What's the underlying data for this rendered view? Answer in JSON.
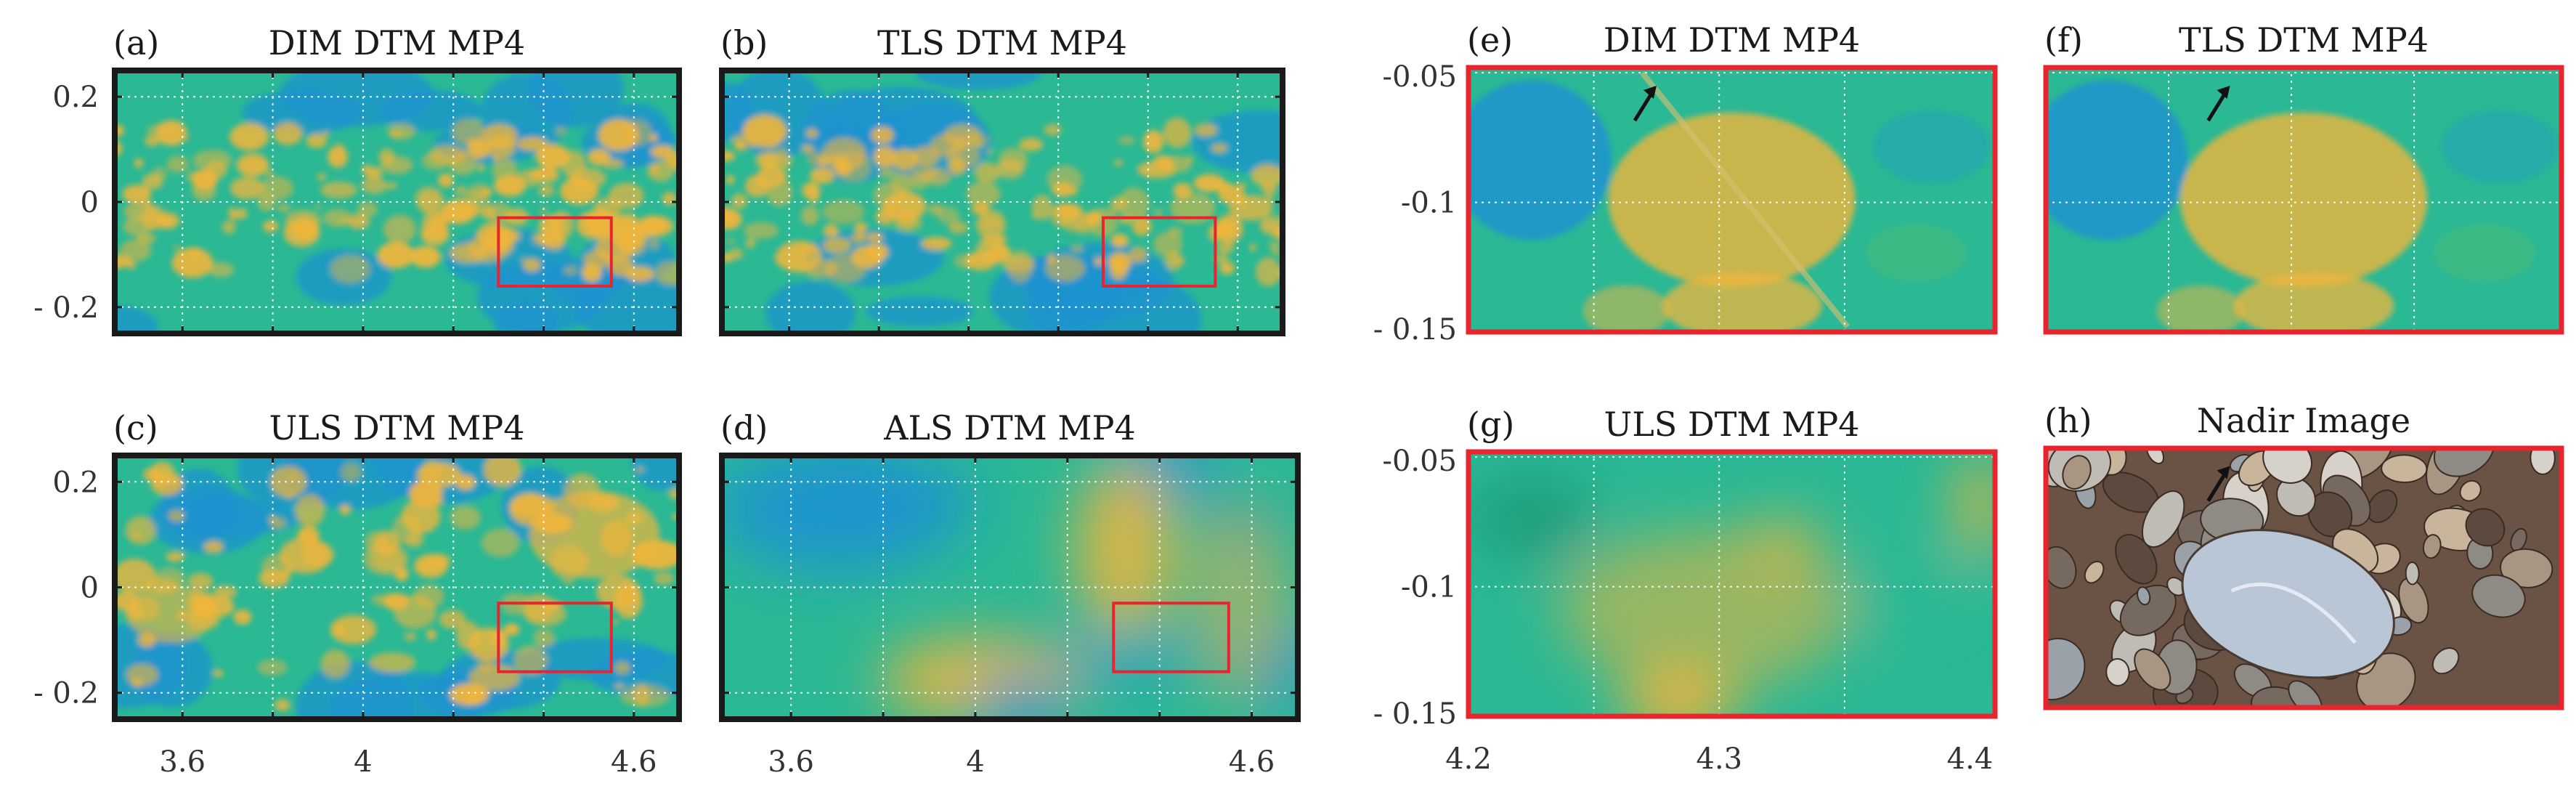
{
  "figure": {
    "colors": {
      "low": "#1e93cf",
      "mid": "#2bb895",
      "high": "#f0b53c",
      "frame_overview": "#1a1a1a",
      "frame_detail": "#e8242e",
      "grid": "#ffffff",
      "arrow": "#111111"
    },
    "panels": [
      {
        "id": "a",
        "label": "(a)",
        "title": "DIM DTM MP4",
        "kind": "overview",
        "style": "sharp"
      },
      {
        "id": "b",
        "label": "(b)",
        "title": "TLS DTM MP4",
        "kind": "overview",
        "style": "sharp"
      },
      {
        "id": "c",
        "label": "(c)",
        "title": "ULS DTM MP4",
        "kind": "overview",
        "style": "noisy"
      },
      {
        "id": "d",
        "label": "(d)",
        "title": "ALS DTM MP4",
        "kind": "overview",
        "style": "smooth"
      },
      {
        "id": "e",
        "label": "(e)",
        "title": "DIM DTM MP4",
        "kind": "detail",
        "style": "sharp"
      },
      {
        "id": "f",
        "label": "(f)",
        "title": "TLS DTM MP4",
        "kind": "detail",
        "style": "sharp"
      },
      {
        "id": "g",
        "label": "(g)",
        "title": "ULS DTM MP4",
        "kind": "detail",
        "style": "smooth"
      },
      {
        "id": "h",
        "label": "(h)",
        "title": "Nadir Image",
        "kind": "photo",
        "style": "photo"
      }
    ],
    "overview_axes": {
      "x_range": [
        3.45,
        4.7
      ],
      "y_range": [
        -0.25,
        0.25
      ],
      "x_ticks": [
        3.6,
        4.0,
        4.6
      ],
      "x_tick_labels": [
        "3.6",
        "4",
        "4.6"
      ],
      "x_gridlines": [
        3.6,
        3.8,
        4.0,
        4.2,
        4.4,
        4.6
      ],
      "y_ticks": [
        0.2,
        0.0,
        -0.2
      ],
      "y_tick_labels": [
        "0.2",
        "0",
        "- 0.2"
      ],
      "y_gridlines": [
        0.2,
        0.0,
        -0.2
      ],
      "zoom_box": {
        "x": [
          4.3,
          4.55
        ],
        "y": [
          -0.16,
          -0.03
        ]
      }
    },
    "detail_axes": {
      "x_range": [
        4.2,
        4.41
      ],
      "y_range": [
        -0.15,
        -0.048
      ],
      "x_ticks": [
        4.2,
        4.3,
        4.4
      ],
      "x_tick_labels": [
        "4.2",
        "4.3",
        "4.4"
      ],
      "x_gridlines": [
        4.25,
        4.3,
        4.35
      ],
      "y_ticks": [
        -0.05,
        -0.1,
        -0.15
      ],
      "y_tick_labels": [
        "-0.05",
        "-0.1",
        "- 0.15"
      ],
      "y_gridlines": [
        -0.05,
        -0.1
      ]
    },
    "arrow_target": {
      "x": 4.275,
      "y": -0.055
    }
  }
}
